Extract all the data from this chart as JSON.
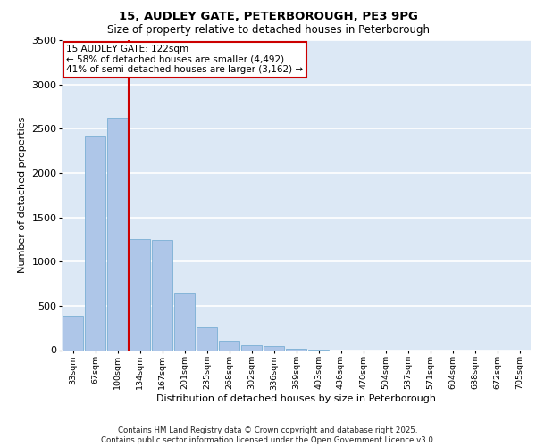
{
  "title_line1": "15, AUDLEY GATE, PETERBOROUGH, PE3 9PG",
  "title_line2": "Size of property relative to detached houses in Peterborough",
  "xlabel": "Distribution of detached houses by size in Peterborough",
  "ylabel": "Number of detached properties",
  "categories": [
    "33sqm",
    "67sqm",
    "100sqm",
    "134sqm",
    "167sqm",
    "201sqm",
    "235sqm",
    "268sqm",
    "302sqm",
    "336sqm",
    "369sqm",
    "403sqm",
    "436sqm",
    "470sqm",
    "504sqm",
    "537sqm",
    "571sqm",
    "604sqm",
    "638sqm",
    "672sqm",
    "705sqm"
  ],
  "values": [
    390,
    2410,
    2620,
    1250,
    1240,
    640,
    260,
    105,
    55,
    45,
    20,
    5,
    0,
    0,
    0,
    0,
    0,
    0,
    0,
    0,
    0
  ],
  "bar_color": "#aec6e8",
  "bar_edge_color": "#7bafd4",
  "vline_color": "#cc0000",
  "annotation_text": "15 AUDLEY GATE: 122sqm\n← 58% of detached houses are smaller (4,492)\n41% of semi-detached houses are larger (3,162) →",
  "annotation_box_color": "#ffffff",
  "annotation_box_edge": "#cc0000",
  "ylim": [
    0,
    3500
  ],
  "yticks": [
    0,
    500,
    1000,
    1500,
    2000,
    2500,
    3000,
    3500
  ],
  "background_color": "#dce8f5",
  "footer_line1": "Contains HM Land Registry data © Crown copyright and database right 2025.",
  "footer_line2": "Contains public sector information licensed under the Open Government Licence v3.0."
}
